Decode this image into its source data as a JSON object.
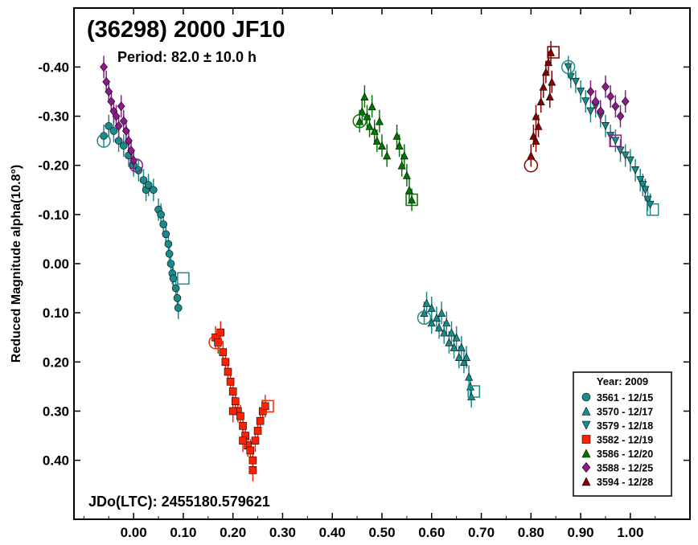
{
  "chart_data": {
    "type": "scatter",
    "title": "(36298) 2000 JF10",
    "subtitle": "Period: 82.0 ± 10.0 h",
    "annotation": "JDo(LTC): 2455180.579621",
    "xlabel": "",
    "ylabel": "Reduced Magnitude alpha(10.8°)",
    "xlim": [
      -0.12,
      1.12
    ],
    "ylim": [
      0.52,
      -0.52
    ],
    "y_inverted": true,
    "x_ticks": [
      "0.00",
      "0.10",
      "0.20",
      "0.30",
      "0.40",
      "0.50",
      "0.60",
      "0.70",
      "0.80",
      "0.90",
      "1.00"
    ],
    "x_tick_values": [
      0.0,
      0.1,
      0.2,
      0.3,
      0.4,
      0.5,
      0.6,
      0.7,
      0.8,
      0.9,
      1.0
    ],
    "y_ticks": [
      "-0.40",
      "-0.30",
      "-0.20",
      "-0.10",
      "0.00",
      "0.10",
      "0.20",
      "0.30",
      "0.40"
    ],
    "y_tick_values": [
      -0.4,
      -0.3,
      -0.2,
      -0.1,
      0.0,
      0.1,
      0.2,
      0.3,
      0.4
    ],
    "grid": false,
    "legend_title": "Year: 2009",
    "legend_position": "bottom-right",
    "series": [
      {
        "name": "3561 - 12/15",
        "marker": "circle",
        "color": "#1a8a8a",
        "start_marker": [
          -0.06,
          -0.25
        ],
        "end_marker": [
          0.1,
          0.03
        ],
        "points": [
          [
            -0.06,
            -0.26
          ],
          [
            -0.05,
            -0.28
          ],
          [
            -0.04,
            -0.27
          ],
          [
            -0.03,
            -0.25
          ],
          [
            -0.02,
            -0.24
          ],
          [
            -0.01,
            -0.22
          ],
          [
            0.0,
            -0.2
          ],
          [
            0.01,
            -0.19
          ],
          [
            0.02,
            -0.17
          ],
          [
            0.025,
            -0.15
          ],
          [
            0.03,
            -0.16
          ],
          [
            0.04,
            -0.15
          ],
          [
            0.05,
            -0.11
          ],
          [
            0.055,
            -0.1
          ],
          [
            0.06,
            -0.08
          ],
          [
            0.065,
            -0.06
          ],
          [
            0.07,
            -0.04
          ],
          [
            0.072,
            -0.02
          ],
          [
            0.075,
            0.0
          ],
          [
            0.078,
            0.02
          ],
          [
            0.08,
            0.03
          ],
          [
            0.085,
            0.05
          ],
          [
            0.088,
            0.07
          ],
          [
            0.09,
            0.09
          ]
        ]
      },
      {
        "name": "3570 - 12/17",
        "marker": "triangle-up",
        "color": "#1a8a8a",
        "start_marker": [
          0.585,
          0.11
        ],
        "end_marker": [
          0.685,
          0.26
        ],
        "points": [
          [
            0.585,
            0.1
          ],
          [
            0.59,
            0.08
          ],
          [
            0.6,
            0.09
          ],
          [
            0.6,
            0.12
          ],
          [
            0.61,
            0.11
          ],
          [
            0.615,
            0.13
          ],
          [
            0.62,
            0.1
          ],
          [
            0.625,
            0.14
          ],
          [
            0.63,
            0.12
          ],
          [
            0.635,
            0.16
          ],
          [
            0.64,
            0.14
          ],
          [
            0.645,
            0.17
          ],
          [
            0.65,
            0.15
          ],
          [
            0.655,
            0.19
          ],
          [
            0.66,
            0.17
          ],
          [
            0.665,
            0.2
          ],
          [
            0.67,
            0.19
          ],
          [
            0.675,
            0.23
          ],
          [
            0.678,
            0.25
          ],
          [
            0.68,
            0.27
          ]
        ]
      },
      {
        "name": "3579 - 12/18",
        "marker": "triangle-down",
        "color": "#1a8a8a",
        "start_marker": [
          0.875,
          -0.4
        ],
        "end_marker": [
          1.045,
          -0.11
        ],
        "points": [
          [
            0.875,
            -0.4
          ],
          [
            0.88,
            -0.38
          ],
          [
            0.89,
            -0.37
          ],
          [
            0.9,
            -0.35
          ],
          [
            0.91,
            -0.33
          ],
          [
            0.92,
            -0.31
          ],
          [
            0.93,
            -0.32
          ],
          [
            0.94,
            -0.3
          ],
          [
            0.95,
            -0.28
          ],
          [
            0.96,
            -0.26
          ],
          [
            0.97,
            -0.25
          ],
          [
            0.98,
            -0.23
          ],
          [
            0.99,
            -0.22
          ],
          [
            1.0,
            -0.21
          ],
          [
            1.01,
            -0.19
          ],
          [
            1.02,
            -0.17
          ],
          [
            1.025,
            -0.16
          ],
          [
            1.03,
            -0.15
          ],
          [
            1.035,
            -0.13
          ],
          [
            1.04,
            -0.12
          ]
        ]
      },
      {
        "name": "3582 - 12/19",
        "marker": "square",
        "color": "#ff2200",
        "start_marker": [
          0.165,
          0.16
        ],
        "end_marker": [
          0.27,
          0.29
        ],
        "points": [
          [
            0.165,
            0.15
          ],
          [
            0.17,
            0.16
          ],
          [
            0.175,
            0.14
          ],
          [
            0.18,
            0.18
          ],
          [
            0.185,
            0.2
          ],
          [
            0.19,
            0.22
          ],
          [
            0.195,
            0.24
          ],
          [
            0.2,
            0.26
          ],
          [
            0.205,
            0.28
          ],
          [
            0.21,
            0.3
          ],
          [
            0.215,
            0.31
          ],
          [
            0.22,
            0.33
          ],
          [
            0.225,
            0.35
          ],
          [
            0.23,
            0.37
          ],
          [
            0.235,
            0.38
          ],
          [
            0.24,
            0.4
          ],
          [
            0.245,
            0.36
          ],
          [
            0.25,
            0.34
          ],
          [
            0.255,
            0.32
          ],
          [
            0.26,
            0.3
          ],
          [
            0.265,
            0.29
          ],
          [
            0.2,
            0.3
          ],
          [
            0.22,
            0.36
          ],
          [
            0.24,
            0.42
          ]
        ]
      },
      {
        "name": "3586 - 12/20",
        "marker": "triangle-up",
        "color": "#007700",
        "start_marker": [
          0.455,
          -0.29
        ],
        "end_marker": [
          0.56,
          -0.13
        ],
        "points": [
          [
            0.455,
            -0.29
          ],
          [
            0.46,
            -0.31
          ],
          [
            0.465,
            -0.34
          ],
          [
            0.47,
            -0.3
          ],
          [
            0.475,
            -0.28
          ],
          [
            0.48,
            -0.32
          ],
          [
            0.485,
            -0.27
          ],
          [
            0.49,
            -0.25
          ],
          [
            0.495,
            -0.29
          ],
          [
            0.5,
            -0.24
          ],
          [
            0.51,
            -0.22
          ],
          [
            0.53,
            -0.26
          ],
          [
            0.535,
            -0.24
          ],
          [
            0.54,
            -0.2
          ],
          [
            0.545,
            -0.22
          ],
          [
            0.55,
            -0.18
          ],
          [
            0.555,
            -0.15
          ],
          [
            0.56,
            -0.13
          ]
        ]
      },
      {
        "name": "3588 - 12/25",
        "marker": "diamond",
        "color": "#8b1a8b",
        "start_marker": [
          0.005,
          -0.2
        ],
        "end_marker": [
          0.97,
          -0.25
        ],
        "points": [
          [
            -0.06,
            -0.4
          ],
          [
            -0.055,
            -0.37
          ],
          [
            -0.05,
            -0.35
          ],
          [
            -0.045,
            -0.33
          ],
          [
            -0.04,
            -0.31
          ],
          [
            -0.035,
            -0.3
          ],
          [
            -0.03,
            -0.28
          ],
          [
            -0.025,
            -0.32
          ],
          [
            -0.02,
            -0.29
          ],
          [
            -0.015,
            -0.27
          ],
          [
            -0.01,
            -0.25
          ],
          [
            -0.005,
            -0.23
          ],
          [
            0.0,
            -0.21
          ],
          [
            0.92,
            -0.35
          ],
          [
            0.93,
            -0.33
          ],
          [
            0.94,
            -0.31
          ],
          [
            0.95,
            -0.36
          ],
          [
            0.96,
            -0.34
          ],
          [
            0.97,
            -0.32
          ],
          [
            0.98,
            -0.3
          ],
          [
            0.99,
            -0.33
          ]
        ]
      },
      {
        "name": "3594 - 12/28",
        "marker": "triangle-up",
        "color": "#880000",
        "start_marker": [
          0.8,
          -0.2
        ],
        "end_marker": [
          0.845,
          -0.43
        ],
        "points": [
          [
            0.8,
            -0.22
          ],
          [
            0.805,
            -0.26
          ],
          [
            0.81,
            -0.3
          ],
          [
            0.815,
            -0.28
          ],
          [
            0.82,
            -0.33
          ],
          [
            0.825,
            -0.36
          ],
          [
            0.83,
            -0.39
          ],
          [
            0.835,
            -0.41
          ],
          [
            0.84,
            -0.43
          ],
          [
            0.842,
            -0.37
          ],
          [
            0.838,
            -0.34
          ],
          [
            0.81,
            -0.25
          ]
        ]
      }
    ]
  }
}
